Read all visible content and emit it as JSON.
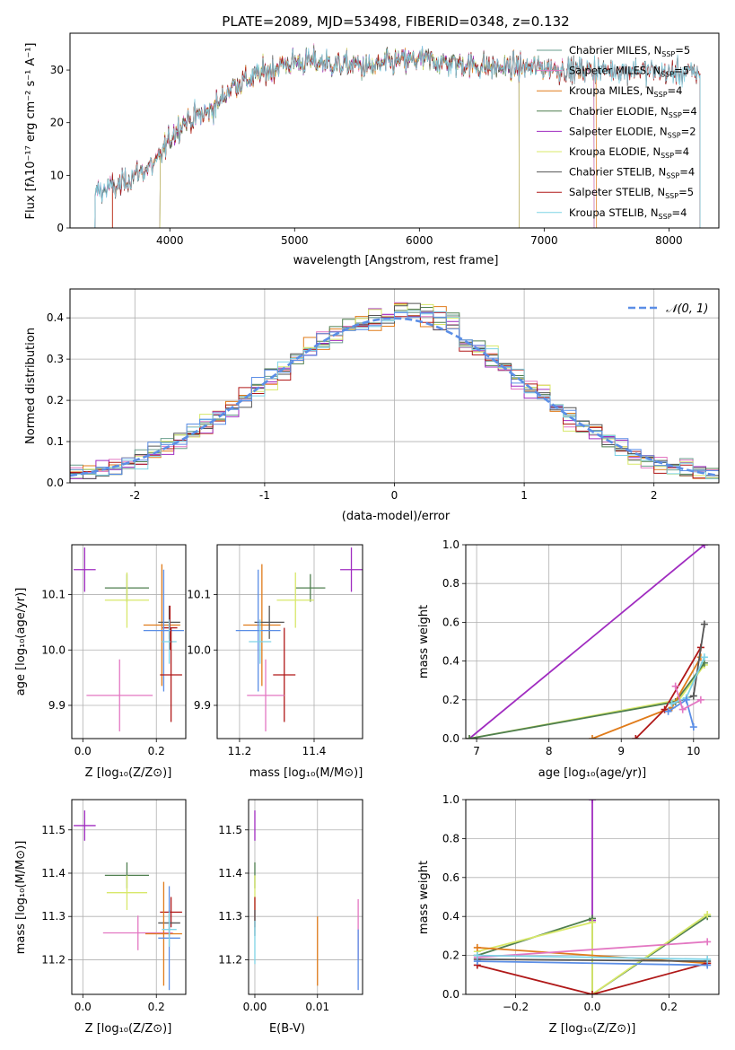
{
  "title": "PLATE=2089, MJD=53498, FIBERID=0348, z=0.132",
  "colors": {
    "Chabrier MILES": "#6a9e8c",
    "Salpeter MILES": "#e377c2",
    "Kroupa MILES": "#e07b1a",
    "Chabrier ELODIE": "#4f7f4f",
    "Salpeter ELODIE": "#a02cc0",
    "Kroupa ELODIE": "#d8e86a",
    "Chabrier STELIB": "#555555",
    "Salpeter STELIB": "#b01818",
    "Kroupa STELIB": "#7fd3e6",
    "extra": "#5b8ee6"
  },
  "chart_data": [
    {
      "id": "spectrum",
      "type": "line",
      "xlabel": "wavelength [Angstrom, rest frame]",
      "ylabel": "Flux [fλ10⁻¹⁷ erg cm⁻² s⁻¹ A⁻¹]",
      "xlim": [
        3200,
        8400
      ],
      "ylim": [
        0,
        37
      ],
      "xticks": [
        4000,
        5000,
        6000,
        7000,
        8000
      ],
      "yticks": [
        0,
        10,
        20,
        30
      ],
      "grid": false,
      "legend_position": "right",
      "legend": [
        {
          "name": "Chabrier MILES",
          "base": "Chabrier MILES, N",
          "sub": "SSP",
          "tail": "=5"
        },
        {
          "name": "Salpeter MILES",
          "base": "Salpeter MILES, N",
          "sub": "SSP",
          "tail": "=5"
        },
        {
          "name": "Kroupa MILES",
          "base": "Kroupa MILES, N",
          "sub": "SSP",
          "tail": "=4"
        },
        {
          "name": "Chabrier ELODIE",
          "base": "Chabrier ELODIE, N",
          "sub": "SSP",
          "tail": "=4"
        },
        {
          "name": "Salpeter ELODIE",
          "base": "Salpeter ELODIE, N",
          "sub": "SSP",
          "tail": "=2"
        },
        {
          "name": "Kroupa ELODIE",
          "base": "Kroupa ELODIE, N",
          "sub": "SSP",
          "tail": "=4"
        },
        {
          "name": "Chabrier STELIB",
          "base": "Chabrier STELIB, N",
          "sub": "SSP",
          "tail": "=4"
        },
        {
          "name": "Salpeter STELIB",
          "base": "Salpeter STELIB, N",
          "sub": "SSP",
          "tail": "=5"
        },
        {
          "name": "Kroupa STELIB",
          "base": "Kroupa STELIB, N",
          "sub": "SSP",
          "tail": "=4"
        }
      ],
      "continuum": [
        [
          3400,
          7
        ],
        [
          3600,
          8
        ],
        [
          3700,
          10
        ],
        [
          3800,
          11
        ],
        [
          3900,
          12.5
        ],
        [
          4000,
          17
        ],
        [
          4100,
          20
        ],
        [
          4200,
          21
        ],
        [
          4300,
          22
        ],
        [
          4400,
          24
        ],
        [
          4500,
          27
        ],
        [
          4600,
          28
        ],
        [
          4700,
          29
        ],
        [
          4800,
          30
        ],
        [
          4900,
          31
        ],
        [
          5000,
          31.5
        ],
        [
          5200,
          31.5
        ],
        [
          5400,
          31
        ],
        [
          5500,
          31
        ],
        [
          5600,
          30.5
        ],
        [
          5800,
          31.5
        ],
        [
          6000,
          32
        ],
        [
          6200,
          31.5
        ],
        [
          6400,
          31
        ],
        [
          6600,
          30.5
        ],
        [
          6800,
          30.5
        ],
        [
          7000,
          30.5
        ],
        [
          7200,
          30
        ],
        [
          7400,
          30
        ],
        [
          7600,
          30
        ],
        [
          7800,
          30
        ],
        [
          8000,
          29.5
        ],
        [
          8200,
          29.5
        ]
      ],
      "series_ranges": {
        "Chabrier MILES": [
          3400,
          7400
        ],
        "Salpeter MILES": [
          3400,
          7400
        ],
        "Kroupa MILES": [
          3540,
          7420
        ],
        "Chabrier ELODIE": [
          3920,
          6800
        ],
        "Salpeter ELODIE": [
          3920,
          6800
        ],
        "Kroupa ELODIE": [
          3920,
          6800
        ],
        "Chabrier STELIB": [
          3400,
          8250
        ],
        "Salpeter STELIB": [
          3540,
          8250
        ],
        "Kroupa STELIB": [
          3400,
          8250
        ]
      }
    },
    {
      "id": "residuals",
      "type": "histogram",
      "xlabel": "(data-model)/error",
      "ylabel": "Normed distribution",
      "xlim": [
        -2.5,
        2.5
      ],
      "ylim": [
        0,
        0.47
      ],
      "xticks": [
        -2,
        -1,
        0,
        1,
        2
      ],
      "yticks": [
        0.0,
        0.1,
        0.2,
        0.3,
        0.4
      ],
      "grid": true,
      "legend_position": "top-right",
      "legend": [
        "𝒩(0, 1)"
      ],
      "reference_curve": "normal(0,1)"
    },
    {
      "id": "age_vs_Z",
      "type": "scatter",
      "xlabel": "Z [log₁₀(Z/Z⊙)]",
      "ylabel": "age  [log₁₀(age/yr)]",
      "xlim": [
        -0.03,
        0.28
      ],
      "ylim": [
        9.84,
        10.19
      ],
      "xticks": [
        0.0,
        0.2
      ],
      "yticks": [
        9.9,
        10.0,
        10.1
      ],
      "grid": true,
      "points": [
        {
          "series": "Salpeter ELODIE",
          "x": 0.005,
          "y": 10.145,
          "xerr": 0.03,
          "yerr": 0.04
        },
        {
          "series": "Chabrier ELODIE",
          "x": 0.12,
          "y": 10.112,
          "xerr": 0.06,
          "yerr": 0.025
        },
        {
          "series": "Kroupa ELODIE",
          "x": 0.12,
          "y": 10.09,
          "xerr": 0.06,
          "yerr": 0.05
        },
        {
          "series": "Kroupa MILES",
          "x": 0.215,
          "y": 10.045,
          "xerr": 0.05,
          "yerr": 0.11
        },
        {
          "series": "Chabrier STELIB",
          "x": 0.235,
          "y": 10.05,
          "xerr": 0.03,
          "yerr": 0.03
        },
        {
          "series": "Salpeter STELIB",
          "x": 0.237,
          "y": 10.04,
          "xerr": 0.02,
          "yerr": 0.04
        },
        {
          "series": "extra",
          "x": 0.22,
          "y": 10.035,
          "xerr": 0.055,
          "yerr": 0.11
        },
        {
          "series": "Kroupa STELIB",
          "x": 0.235,
          "y": 10.015,
          "xerr": 0.02,
          "yerr": 0.04
        },
        {
          "series": "Salpeter STELIB",
          "x": 0.24,
          "y": 9.955,
          "xerr": 0.03,
          "yerr": 0.085
        },
        {
          "series": "Salpeter MILES",
          "x": 0.1,
          "y": 9.918,
          "xerr": 0.09,
          "yerr": 0.065
        }
      ]
    },
    {
      "id": "age_vs_mass",
      "type": "scatter",
      "xlabel": "mass [log₁₀(M/M⊙)]",
      "ylabel": "",
      "xlim": [
        11.14,
        11.53
      ],
      "ylim": [
        9.84,
        10.19
      ],
      "xticks": [
        11.2,
        11.4
      ],
      "yticks": [
        9.9,
        10.0,
        10.1
      ],
      "grid": true,
      "points": [
        {
          "series": "Salpeter ELODIE",
          "x": 11.5,
          "y": 10.145,
          "xerr": 0.03,
          "yerr": 0.04
        },
        {
          "series": "Chabrier ELODIE",
          "x": 11.39,
          "y": 10.112,
          "xerr": 0.04,
          "yerr": 0.025
        },
        {
          "series": "Kroupa ELODIE",
          "x": 11.35,
          "y": 10.09,
          "xerr": 0.05,
          "yerr": 0.05
        },
        {
          "series": "Kroupa MILES",
          "x": 11.26,
          "y": 10.045,
          "xerr": 0.05,
          "yerr": 0.11
        },
        {
          "series": "Chabrier STELIB",
          "x": 11.28,
          "y": 10.05,
          "xerr": 0.04,
          "yerr": 0.03
        },
        {
          "series": "extra",
          "x": 11.25,
          "y": 10.035,
          "xerr": 0.06,
          "yerr": 0.11
        },
        {
          "series": "Kroupa STELIB",
          "x": 11.255,
          "y": 10.015,
          "xerr": 0.03,
          "yerr": 0.04
        },
        {
          "series": "Salpeter STELIB",
          "x": 11.32,
          "y": 9.955,
          "xerr": 0.03,
          "yerr": 0.085
        },
        {
          "series": "Salpeter MILES",
          "x": 11.27,
          "y": 9.918,
          "xerr": 0.05,
          "yerr": 0.065
        }
      ]
    },
    {
      "id": "weight_vs_age",
      "type": "line",
      "xlabel": "age  [log₁₀(age/yr)]",
      "ylabel": "mass weight",
      "xlim": [
        6.85,
        10.35
      ],
      "ylim": [
        0,
        1
      ],
      "xticks": [
        7,
        8,
        9,
        10
      ],
      "yticks": [
        0.0,
        0.2,
        0.4,
        0.6,
        0.8,
        1.0
      ],
      "grid": true,
      "series": [
        {
          "name": "Salpeter ELODIE",
          "x": [
            6.9,
            10.15
          ],
          "y": [
            0.0,
            1.0
          ]
        },
        {
          "name": "Kroupa ELODIE",
          "x": [
            6.9,
            9.8,
            10.15
          ],
          "y": [
            0.0,
            0.2,
            0.38
          ]
        },
        {
          "name": "Chabrier ELODIE",
          "x": [
            6.9,
            9.75,
            10.15
          ],
          "y": [
            0.0,
            0.19,
            0.39
          ]
        },
        {
          "name": "Kroupa MILES",
          "x": [
            8.6,
            9.7,
            10.1
          ],
          "y": [
            0.0,
            0.16,
            0.42
          ]
        },
        {
          "name": "Salpeter STELIB",
          "x": [
            9.2,
            9.6,
            10.1
          ],
          "y": [
            0.0,
            0.15,
            0.47
          ]
        },
        {
          "name": "Chabrier STELIB",
          "x": [
            9.7,
            10.0,
            10.15
          ],
          "y": [
            0.18,
            0.22,
            0.59
          ]
        },
        {
          "name": "Kroupa STELIB",
          "x": [
            9.7,
            9.9,
            10.15
          ],
          "y": [
            0.18,
            0.21,
            0.42
          ]
        },
        {
          "name": "extra",
          "x": [
            9.65,
            9.9,
            10.0
          ],
          "y": [
            0.14,
            0.2,
            0.06
          ]
        },
        {
          "name": "Salpeter MILES",
          "x": [
            9.75,
            9.85,
            10.1
          ],
          "y": [
            0.27,
            0.15,
            0.2
          ]
        }
      ]
    },
    {
      "id": "mass_vs_Z",
      "type": "scatter",
      "xlabel": "Z [log₁₀(Z/Z⊙)]",
      "ylabel": "mass [log₁₀(M/M⊙)]",
      "xlim": [
        -0.03,
        0.28
      ],
      "ylim": [
        11.12,
        11.57
      ],
      "xticks": [
        0.0,
        0.2
      ],
      "yticks": [
        11.2,
        11.3,
        11.4,
        11.5
      ],
      "grid": true,
      "points": [
        {
          "series": "Salpeter ELODIE",
          "x": 0.005,
          "y": 11.51,
          "xerr": 0.03,
          "yerr": 0.035
        },
        {
          "series": "Chabrier ELODIE",
          "x": 0.12,
          "y": 11.395,
          "xerr": 0.06,
          "yerr": 0.03
        },
        {
          "series": "Kroupa ELODIE",
          "x": 0.12,
          "y": 11.355,
          "xerr": 0.055,
          "yerr": 0.04
        },
        {
          "series": "Salpeter STELIB",
          "x": 0.24,
          "y": 11.31,
          "xerr": 0.03,
          "yerr": 0.035
        },
        {
          "series": "Chabrier STELIB",
          "x": 0.235,
          "y": 11.285,
          "xerr": 0.03,
          "yerr": 0.03
        },
        {
          "series": "Salpeter MILES",
          "x": 0.15,
          "y": 11.262,
          "xerr": 0.095,
          "yerr": 0.04
        },
        {
          "series": "Kroupa MILES",
          "x": 0.22,
          "y": 11.26,
          "xerr": 0.05,
          "yerr": 0.12
        },
        {
          "series": "extra",
          "x": 0.235,
          "y": 11.25,
          "xerr": 0.03,
          "yerr": 0.12
        },
        {
          "series": "Kroupa STELIB",
          "x": 0.235,
          "y": 11.27,
          "xerr": 0.02,
          "yerr": 0.04
        }
      ]
    },
    {
      "id": "mass_vs_EBV",
      "type": "scatter",
      "xlabel": "E(B-V)",
      "ylabel": "",
      "xlim": [
        -0.001,
        0.0172
      ],
      "ylim": [
        11.12,
        11.57
      ],
      "xticks": [
        0.0,
        0.01
      ],
      "yticks": [
        11.2,
        11.3,
        11.4,
        11.5
      ],
      "grid": true,
      "points": [
        {
          "series": "Salpeter ELODIE",
          "x": 0.0,
          "y": 11.51,
          "xerr": 0,
          "yerr": 0.035
        },
        {
          "series": "Chabrier ELODIE",
          "x": 0.0,
          "y": 11.395,
          "xerr": 0,
          "yerr": 0.03
        },
        {
          "series": "Kroupa ELODIE",
          "x": 0.0,
          "y": 11.355,
          "xerr": 0,
          "yerr": 0.04
        },
        {
          "series": "Salpeter STELIB",
          "x": 0.0,
          "y": 11.31,
          "xerr": 0,
          "yerr": 0.035
        },
        {
          "series": "Chabrier STELIB",
          "x": 0.0,
          "y": 11.285,
          "xerr": 0,
          "yerr": 0.03
        },
        {
          "series": "Kroupa STELIB",
          "x": 0.0,
          "y": 11.24,
          "xerr": 0,
          "yerr": 0.05
        },
        {
          "series": "Kroupa MILES",
          "x": 0.01,
          "y": 11.22,
          "xerr": 0,
          "yerr": 0.08
        },
        {
          "series": "Salpeter MILES",
          "x": 0.0165,
          "y": 11.27,
          "xerr": 0,
          "yerr": 0.07
        },
        {
          "series": "extra",
          "x": 0.0165,
          "y": 11.2,
          "xerr": 0,
          "yerr": 0.07
        }
      ]
    },
    {
      "id": "weight_vs_Z",
      "type": "line",
      "xlabel": "Z [log₁₀(Z/Z⊙)]",
      "ylabel": "mass weight",
      "xlim": [
        -0.33,
        0.33
      ],
      "ylim": [
        0,
        1
      ],
      "xticks": [
        -0.2,
        0.0,
        0.2
      ],
      "yticks": [
        0.0,
        0.2,
        0.4,
        0.6,
        0.8,
        1.0
      ],
      "grid": true,
      "series": [
        {
          "name": "Salpeter ELODIE",
          "x": [
            0.0,
            0.0
          ],
          "y": [
            1.0,
            0.38
          ]
        },
        {
          "name": "Chabrier ELODIE",
          "x": [
            -0.3,
            0.0,
            0.0,
            0.3
          ],
          "y": [
            0.2,
            0.39,
            0.0,
            0.4
          ]
        },
        {
          "name": "Kroupa ELODIE",
          "x": [
            -0.3,
            0.0,
            0.0,
            0.3
          ],
          "y": [
            0.22,
            0.37,
            0.0,
            0.41
          ]
        },
        {
          "name": "Kroupa MILES",
          "x": [
            -0.3,
            0.3
          ],
          "y": [
            0.24,
            0.16
          ]
        },
        {
          "name": "Salpeter STELIB",
          "x": [
            -0.3,
            0.0,
            0.3
          ],
          "y": [
            0.15,
            0.0,
            0.16
          ]
        },
        {
          "name": "Chabrier STELIB",
          "x": [
            -0.3,
            0.3
          ],
          "y": [
            0.18,
            0.17
          ]
        },
        {
          "name": "Salpeter MILES",
          "x": [
            -0.3,
            0.3
          ],
          "y": [
            0.19,
            0.27
          ]
        },
        {
          "name": "extra",
          "x": [
            -0.3,
            0.3
          ],
          "y": [
            0.17,
            0.15
          ]
        },
        {
          "name": "Kroupa STELIB",
          "x": [
            -0.3,
            0.3
          ],
          "y": [
            0.2,
            0.18
          ]
        }
      ]
    }
  ]
}
